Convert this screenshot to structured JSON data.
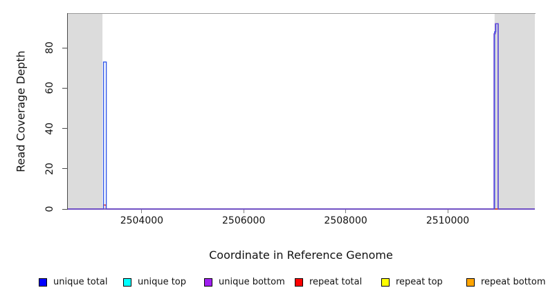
{
  "figure": {
    "x_axis_label": "Coordinate in Reference Genome",
    "y_axis_label": "Read Coverage Depth"
  },
  "chart_data": {
    "type": "line",
    "title": "",
    "xlabel": "Coordinate in Reference Genome",
    "ylabel": "Read Coverage Depth",
    "xlim": [
      2502550,
      2511710
    ],
    "ylim": [
      0,
      96.9
    ],
    "xticks": [
      2504000,
      2506000,
      2508000,
      2510000
    ],
    "yticks": [
      0,
      20,
      40,
      60,
      80
    ],
    "grid": false,
    "legend_position": "bottom",
    "shaded_regions": [
      {
        "name": "shaded-region-left",
        "x0": 2502550,
        "x1": 2503230,
        "color": "#dcdcdc"
      },
      {
        "name": "shaded-region-right",
        "x0": 2510920,
        "x1": 2511710,
        "color": "#dcdcdc"
      }
    ],
    "series": [
      {
        "name": "unique top",
        "color": "#00e5e5",
        "points": [
          [
            2502550,
            0
          ],
          [
            2511710,
            0
          ]
        ]
      },
      {
        "name": "repeat top",
        "color": "#f5f500",
        "points": [
          [
            2502550,
            0
          ],
          [
            2511710,
            0
          ]
        ]
      },
      {
        "name": "repeat bottom",
        "color": "#f5a500",
        "points": [
          [
            2502550,
            0
          ],
          [
            2511710,
            0
          ]
        ]
      },
      {
        "name": "repeat total",
        "color": "#e02020",
        "points": [
          [
            2502550,
            0
          ],
          [
            2503250,
            0
          ],
          [
            2503250,
            2
          ],
          [
            2503300,
            2
          ],
          [
            2503300,
            0
          ],
          [
            2511710,
            0
          ]
        ]
      },
      {
        "name": "unique total",
        "color": "#3056e8",
        "points": [
          [
            2502550,
            0
          ],
          [
            2503250,
            0
          ],
          [
            2503250,
            73
          ],
          [
            2503305,
            73
          ],
          [
            2503305,
            0
          ],
          [
            2510920,
            0
          ],
          [
            2510920,
            88
          ],
          [
            2510945,
            88
          ],
          [
            2510945,
            92
          ],
          [
            2510992,
            92
          ],
          [
            2510992,
            0
          ],
          [
            2511710,
            0
          ]
        ]
      },
      {
        "name": "unique bottom",
        "color": "#6a48d8",
        "points": [
          [
            2502550,
            0
          ],
          [
            2510910,
            0
          ],
          [
            2510910,
            87
          ],
          [
            2510935,
            87
          ],
          [
            2510935,
            92
          ],
          [
            2510988,
            92
          ],
          [
            2510988,
            0
          ],
          [
            2511710,
            0
          ]
        ]
      }
    ]
  },
  "legend": {
    "items": [
      {
        "label": "unique total",
        "color": "#0000ff"
      },
      {
        "label": "unique top",
        "color": "#00ffff"
      },
      {
        "label": "unique bottom",
        "color": "#a020f0"
      },
      {
        "label": "repeat total",
        "color": "#ff0000"
      },
      {
        "label": "repeat top",
        "color": "#ffff00"
      },
      {
        "label": "repeat bottom",
        "color": "#ffa500"
      }
    ]
  }
}
